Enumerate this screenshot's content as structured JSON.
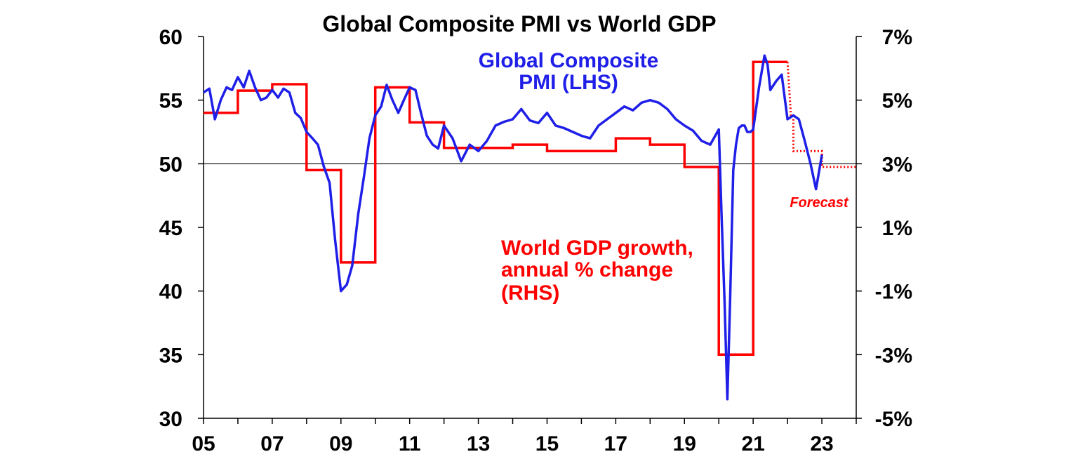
{
  "chart_data": {
    "type": "line",
    "title": "Global Composite PMI vs World GDP",
    "x_tick_labels": [
      "05",
      "07",
      "09",
      "11",
      "13",
      "15",
      "17",
      "19",
      "21",
      "23"
    ],
    "y_left_tick_labels": [
      "60",
      "55",
      "50",
      "45",
      "40",
      "35",
      "30"
    ],
    "y_right_tick_labels": [
      "7%",
      "5%",
      "3%",
      "1%",
      "-1%",
      "-3%",
      "-5%"
    ],
    "y_left_range": [
      30,
      60
    ],
    "y_right_range": [
      -5,
      7
    ],
    "x_range": [
      2005.0,
      2024.0
    ],
    "reference_line": 50,
    "grid": false,
    "colors": {
      "pmi": "#1f1fe8",
      "gdp": "#ff0000",
      "axis": "#000000"
    },
    "annotations": {
      "pmi_label": [
        "Global Composite",
        "PMI (LHS)"
      ],
      "gdp_label": [
        "World GDP growth,",
        "annual % change",
        "(RHS)"
      ],
      "forecast_label": "Forecast"
    },
    "series": [
      {
        "name": "Global Composite PMI (LHS)",
        "axis": "left",
        "x": [
          2005.0,
          2005.17,
          2005.33,
          2005.5,
          2005.67,
          2005.83,
          2006.0,
          2006.17,
          2006.33,
          2006.5,
          2006.67,
          2006.83,
          2007.0,
          2007.17,
          2007.33,
          2007.5,
          2007.67,
          2007.83,
          2008.0,
          2008.17,
          2008.33,
          2008.5,
          2008.67,
          2008.83,
          2009.0,
          2009.17,
          2009.33,
          2009.5,
          2009.67,
          2009.83,
          2010.0,
          2010.17,
          2010.33,
          2010.5,
          2010.67,
          2010.83,
          2011.0,
          2011.17,
          2011.33,
          2011.5,
          2011.67,
          2011.83,
          2012.0,
          2012.25,
          2012.5,
          2012.75,
          2013.0,
          2013.25,
          2013.5,
          2013.75,
          2014.0,
          2014.25,
          2014.5,
          2014.75,
          2015.0,
          2015.25,
          2015.5,
          2015.75,
          2016.0,
          2016.25,
          2016.5,
          2016.75,
          2017.0,
          2017.25,
          2017.5,
          2017.75,
          2018.0,
          2018.25,
          2018.5,
          2018.75,
          2019.0,
          2019.25,
          2019.5,
          2019.75,
          2020.0,
          2020.08,
          2020.17,
          2020.25,
          2020.33,
          2020.42,
          2020.5,
          2020.58,
          2020.67,
          2020.75,
          2020.83,
          2020.92,
          2021.0,
          2021.17,
          2021.33,
          2021.42,
          2021.5,
          2021.67,
          2021.83,
          2022.0,
          2022.17,
          2022.33,
          2022.5,
          2022.67,
          2022.83,
          2023.0
        ],
        "values": [
          55.6,
          55.9,
          53.5,
          55.0,
          56.0,
          55.8,
          56.8,
          56.0,
          57.3,
          56.0,
          55.0,
          55.2,
          55.8,
          55.2,
          55.9,
          55.6,
          54.0,
          53.6,
          52.5,
          52.0,
          51.5,
          49.8,
          48.5,
          44.0,
          40.0,
          40.5,
          42.0,
          46.0,
          49.0,
          52.0,
          53.8,
          54.5,
          56.2,
          55.0,
          54.0,
          55.0,
          56.0,
          55.8,
          54.0,
          52.2,
          51.5,
          51.2,
          53.0,
          52.0,
          50.2,
          51.5,
          51.0,
          51.8,
          53.0,
          53.3,
          53.5,
          54.3,
          53.4,
          53.2,
          54.0,
          53.0,
          52.8,
          52.5,
          52.2,
          52.0,
          53.0,
          53.5,
          54.0,
          54.5,
          54.2,
          54.8,
          55.0,
          54.8,
          54.3,
          53.5,
          53.0,
          52.6,
          51.8,
          51.5,
          52.7,
          46.0,
          39.0,
          31.5,
          39.5,
          49.5,
          51.5,
          52.8,
          53.0,
          53.0,
          52.5,
          52.5,
          52.7,
          56.0,
          58.5,
          57.8,
          55.8,
          56.5,
          57.0,
          53.5,
          53.8,
          53.5,
          51.8,
          50.0,
          48.0,
          50.7
        ]
      },
      {
        "name": "World GDP growth, annual % change (RHS)",
        "axis": "right",
        "x": [
          2005.0,
          2006.0,
          2006.0,
          2007.0,
          2007.0,
          2008.0,
          2008.0,
          2009.0,
          2009.0,
          2010.0,
          2010.0,
          2011.0,
          2011.0,
          2012.0,
          2012.0,
          2014.0,
          2014.0,
          2015.0,
          2015.0,
          2017.0,
          2017.0,
          2018.0,
          2018.0,
          2019.0,
          2019.0,
          2020.0,
          2020.0,
          2021.0,
          2021.0,
          2022.0
        ],
        "values": [
          4.6,
          4.6,
          5.3,
          5.3,
          5.5,
          5.5,
          2.8,
          2.8,
          -0.1,
          -0.1,
          5.4,
          5.4,
          4.3,
          4.3,
          3.5,
          3.5,
          3.6,
          3.6,
          3.4,
          3.4,
          3.8,
          3.8,
          3.6,
          3.6,
          2.9,
          2.9,
          -3.0,
          -3.0,
          6.2,
          6.2
        ]
      },
      {
        "name": "World GDP growth forecast",
        "axis": "right",
        "style": "dotted",
        "x": [
          2022.0,
          2022.1,
          2022.1,
          2022.17,
          2022.17,
          2023.0,
          2023.0,
          2024.0
        ],
        "values": [
          6.2,
          4.5,
          4.5,
          4.5,
          3.4,
          3.4,
          2.9,
          2.9
        ]
      }
    ]
  }
}
